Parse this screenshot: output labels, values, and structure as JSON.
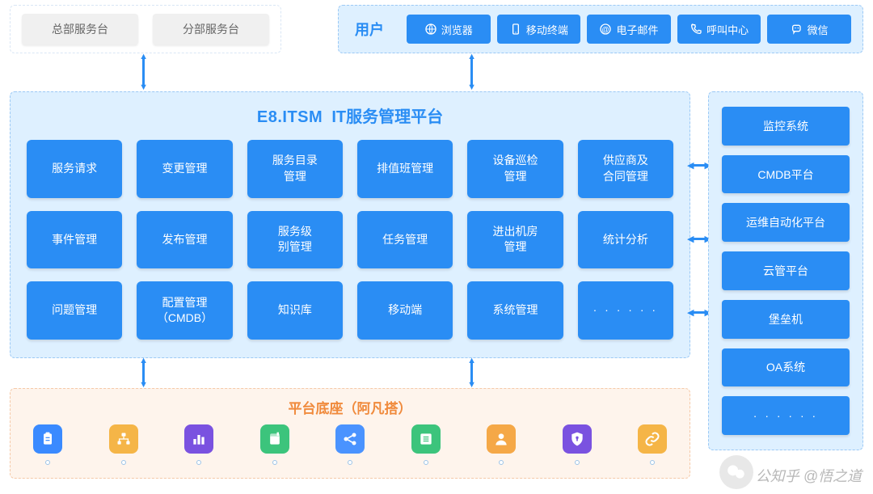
{
  "colors": {
    "primary": "#2a8df4",
    "primary_light_bg": "#def0ff",
    "primary_border": "#9cc9f5",
    "gray_btn_bg": "#f0f0f0",
    "gray_btn_text": "#666666",
    "orange": "#f08a3c",
    "orange_bg": "#fef4ec",
    "orange_border": "#f5c9a8"
  },
  "top_left": {
    "items": [
      "总部服务台",
      "分部服务台"
    ]
  },
  "top_right": {
    "user_label": "用户",
    "channels": [
      {
        "label": "浏览器",
        "icon": "browser"
      },
      {
        "label": "移动终端",
        "icon": "mobile"
      },
      {
        "label": "电子邮件",
        "icon": "email"
      },
      {
        "label": "呼叫中心",
        "icon": "phone"
      },
      {
        "label": "微信",
        "icon": "wechat"
      }
    ]
  },
  "main": {
    "title_brand": "E8.ITSM",
    "title_text": "IT服务管理平台",
    "modules": [
      "服务请求",
      "变更管理",
      "服务目录\n管理",
      "排值班管理",
      "设备巡检\n管理",
      "供应商及\n合同管理",
      "事件管理",
      "发布管理",
      "服务级\n别管理",
      "任务管理",
      "进出机房\n管理",
      "统计分析",
      "问题管理",
      "配置管理\n（CMDB）",
      "知识库",
      "移动端",
      "系统管理",
      "· · · · · ·"
    ]
  },
  "right": {
    "systems": [
      "监控系统",
      "CMDB平台",
      "运维自动化平台",
      "云管平台",
      "堡垒机",
      "OA系统",
      "· · · · · ·"
    ]
  },
  "bottom": {
    "title": "平台底座（阿凡搭）",
    "icons": [
      {
        "name": "clipboard",
        "bg": "#3a8aff"
      },
      {
        "name": "org-chart",
        "bg": "#f5b547"
      },
      {
        "name": "bar-chart",
        "bg": "#7a52e0"
      },
      {
        "name": "book",
        "bg": "#3cc47c"
      },
      {
        "name": "share",
        "bg": "#4a93ff"
      },
      {
        "name": "list",
        "bg": "#3cc47c"
      },
      {
        "name": "person",
        "bg": "#f5a847"
      },
      {
        "name": "shield",
        "bg": "#7a52e0"
      },
      {
        "name": "link",
        "bg": "#f5b547"
      }
    ]
  },
  "watermark": "公知乎 @悟之道"
}
